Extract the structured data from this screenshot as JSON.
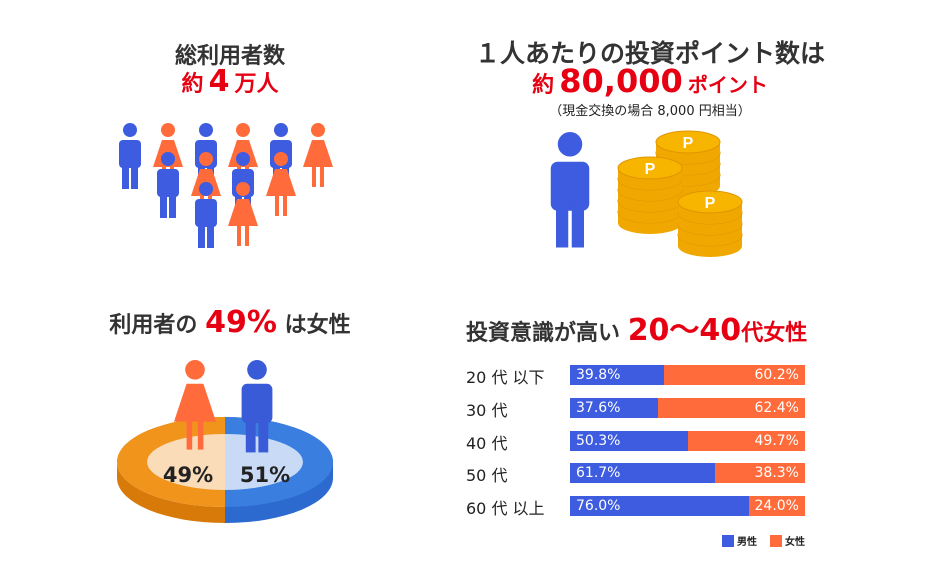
{
  "users": {
    "title": "総利用者数",
    "prefix": "約",
    "value": "4",
    "unit": "万人"
  },
  "points": {
    "title": "１人あたりの投資ポイント数は",
    "prefix": "約",
    "value": "80,000",
    "unit": "ポイント",
    "note": "（現金交換の場合 8,000 円相当）",
    "coin_letter": "P"
  },
  "gender": {
    "title_a": "利用者の",
    "value": "49%",
    "title_b": "は女性"
  },
  "age": {
    "title_a": "投資意識が高い",
    "value": "20〜40",
    "title_b": "代女性"
  },
  "colors": {
    "male": "#3d5ce0",
    "female": "#ff6b3a",
    "accent": "#e60012",
    "pie_female": "#f0941c",
    "pie_male": "#3a7ee0",
    "coin": "#f7b500"
  },
  "chart_data": [
    {
      "type": "pie",
      "labels": [
        "女性",
        "男性"
      ],
      "values": [
        49,
        51
      ],
      "data_labels": [
        "49%",
        "51%"
      ]
    },
    {
      "type": "bar",
      "stacked": true,
      "orientation": "horizontal",
      "categories": [
        "20 代 以下",
        "30 代",
        "40 代",
        "50 代",
        "60 代 以上"
      ],
      "series": [
        {
          "name": "男性",
          "values": [
            39.8,
            37.6,
            50.3,
            61.7,
            76.0
          ]
        },
        {
          "name": "女性",
          "values": [
            60.2,
            62.4,
            49.7,
            38.3,
            24.0
          ]
        }
      ],
      "xlim": [
        0,
        100
      ],
      "legend": "bottom-right"
    }
  ]
}
